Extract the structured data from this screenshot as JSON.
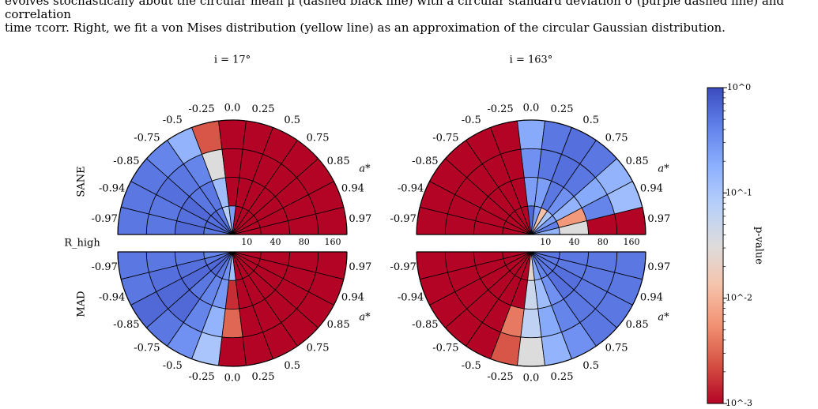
{
  "caption": {
    "line1": "evolves stochastically about the circular mean μ (dashed black line) with a circular standard deviation σ (purple dashed line) and correlation",
    "line2": "time τcorr. Right, we fit a von Mises distribution (yellow line) as an approximation of the circular Gaussian distribution."
  },
  "chart_data": {
    "type": "polar-heatmap",
    "titles": [
      "i = 17°",
      "i = 163°"
    ],
    "row_labels": [
      "SANE",
      "MAD"
    ],
    "radial_axis_label": "R_high",
    "radial_ticks": [
      10,
      40,
      80,
      160
    ],
    "spin_axis_label": "a*",
    "spin_labels": [
      "-0.97",
      "-0.94",
      "-0.85",
      "-0.75",
      "-0.5",
      "-0.25",
      "0.0",
      "0.25",
      "0.5",
      "0.75",
      "0.85",
      "0.94",
      "0.97"
    ],
    "colorbar": {
      "label": "p-value",
      "scale": "log",
      "range": [
        0.001,
        1
      ],
      "ticks": [
        "10^0",
        "10^-1",
        "10^-2",
        "10^-3"
      ],
      "colormap": "coolwarm_r"
    },
    "panels": [
      {
        "name": "SANE, i=17°",
        "values_log10": [
          [
            -0.3,
            -0.2,
            -0.25,
            -0.2,
            -0.3,
            -1.1,
            -0.6,
            -3,
            -3,
            -3,
            -3,
            -3,
            -3
          ],
          [
            -0.2,
            -0.25,
            -0.2,
            -0.3,
            -0.3,
            -0.9,
            -3,
            -3,
            -3,
            -3,
            -3,
            -3,
            -3
          ],
          [
            -0.3,
            -0.3,
            -0.25,
            -0.3,
            -0.4,
            -1.5,
            -3,
            -3,
            -3,
            -3,
            -3,
            -3,
            -3
          ],
          [
            -0.3,
            -0.3,
            -0.3,
            -0.4,
            -0.8,
            -2.6,
            -3,
            -3,
            -3,
            -3,
            -3,
            -3,
            -3
          ]
        ]
      },
      {
        "name": "SANE, i=163°",
        "values_log10": [
          [
            -3,
            -3,
            -3,
            -3,
            -3,
            -3,
            -0.2,
            -0.6,
            -1.9,
            -1.0,
            -0.6,
            -0.35,
            -0.8
          ],
          [
            -3,
            -3,
            -3,
            -3,
            -3,
            -3,
            -0.6,
            -0.6,
            -0.3,
            -0.5,
            -0.8,
            -2.2,
            -1.5
          ],
          [
            -3,
            -3,
            -3,
            -3,
            -3,
            -3,
            -0.5,
            -0.3,
            -0.25,
            -0.3,
            -0.7,
            -0.4,
            -3
          ],
          [
            -3,
            -3,
            -3,
            -3,
            -3,
            -3,
            -0.7,
            -0.3,
            -0.25,
            -0.3,
            -0.8,
            -0.9,
            -3
          ]
        ]
      },
      {
        "name": "MAD, i=17°",
        "values_log10": [
          [
            -0.4,
            -0.3,
            -0.2,
            -0.2,
            -0.3,
            -0.5,
            -0.9,
            -3,
            -3,
            -3,
            -3,
            -3,
            -3
          ],
          [
            -0.3,
            -0.25,
            -0.2,
            -0.3,
            -0.4,
            -0.55,
            -2.8,
            -3,
            -3,
            -3,
            -3,
            -3,
            -3
          ],
          [
            -0.3,
            -0.25,
            -0.2,
            -0.2,
            -0.4,
            -0.8,
            -2.5,
            -3,
            -3,
            -3,
            -3,
            -3,
            -3
          ],
          [
            -0.3,
            -0.3,
            -0.2,
            -0.3,
            -0.5,
            -1.0,
            -3,
            -3,
            -3,
            -3,
            -3,
            -3,
            -3
          ]
        ]
      },
      {
        "name": "MAD, i=163°",
        "values_log10": [
          [
            -3,
            -3,
            -3,
            -3,
            -3,
            -3,
            -1.6,
            -0.7,
            -0.4,
            -0.3,
            -0.3,
            -0.3,
            -0.3
          ],
          [
            -3,
            -3,
            -3,
            -3,
            -3,
            -3,
            -1.3,
            -0.9,
            -0.5,
            -0.25,
            -0.25,
            -0.3,
            -0.3
          ],
          [
            -3,
            -3,
            -3,
            -3,
            -3,
            -2.4,
            -1.2,
            -0.7,
            -0.4,
            -0.3,
            -0.3,
            -0.3,
            -0.3
          ],
          [
            -3,
            -3,
            -3,
            -3,
            -3,
            -2.6,
            -1.5,
            -0.8,
            -0.5,
            -0.3,
            -0.3,
            -0.3,
            -0.3
          ]
        ]
      }
    ]
  }
}
